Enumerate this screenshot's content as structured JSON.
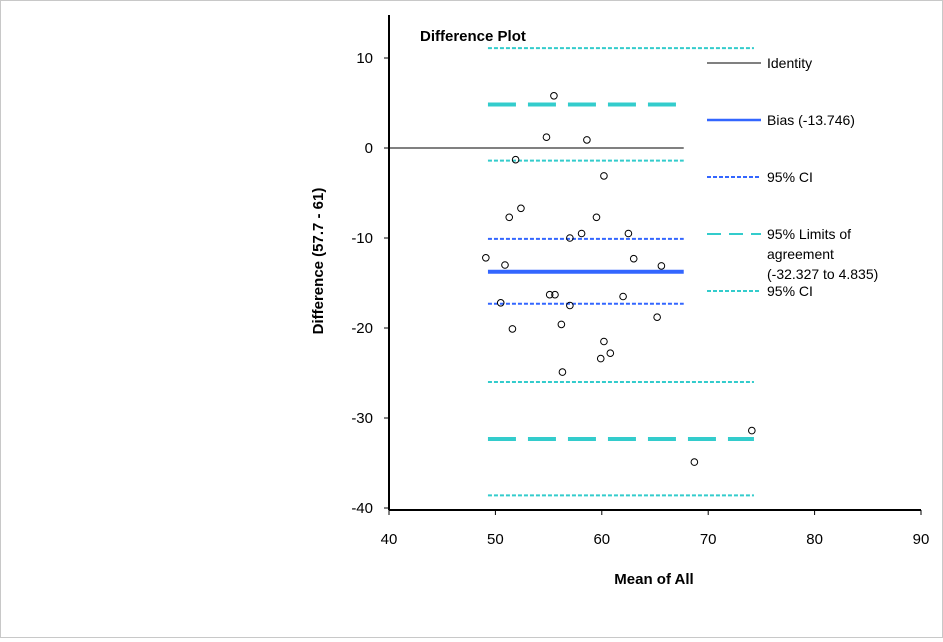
{
  "chart_data": {
    "type": "scatter",
    "title": "Difference Plot",
    "xlabel": "Mean of All",
    "ylabel": "Difference (57.7 - 61)",
    "xlim": [
      40,
      90
    ],
    "ylim": [
      -40,
      15
    ],
    "xticks": [
      40,
      50,
      60,
      70,
      80,
      90
    ],
    "yticks": [
      10,
      0,
      -10,
      -20,
      -30,
      -40
    ],
    "grid": false,
    "legend_position": "right",
    "points": [
      [
        55.5,
        5.8
      ],
      [
        54.8,
        1.2
      ],
      [
        58.6,
        0.9
      ],
      [
        51.9,
        -1.3
      ],
      [
        60.2,
        -3.1
      ],
      [
        52.4,
        -6.7
      ],
      [
        51.3,
        -7.7
      ],
      [
        59.5,
        -7.7
      ],
      [
        57.0,
        -10.0
      ],
      [
        58.1,
        -9.5
      ],
      [
        62.5,
        -9.5
      ],
      [
        49.1,
        -12.2
      ],
      [
        50.9,
        -13.0
      ],
      [
        63.0,
        -12.3
      ],
      [
        65.6,
        -13.1
      ],
      [
        50.5,
        -17.2
      ],
      [
        55.1,
        -16.3
      ],
      [
        55.6,
        -16.3
      ],
      [
        57.0,
        -17.5
      ],
      [
        62.0,
        -16.5
      ],
      [
        65.2,
        -18.8
      ],
      [
        51.6,
        -20.1
      ],
      [
        56.2,
        -19.6
      ],
      [
        60.2,
        -21.5
      ],
      [
        60.8,
        -22.8
      ],
      [
        59.9,
        -23.4
      ],
      [
        56.3,
        -24.9
      ],
      [
        74.1,
        -31.4
      ],
      [
        68.7,
        -34.9
      ]
    ],
    "lines": [
      {
        "name": "identity",
        "y": 0,
        "x": [
          40,
          67.7
        ],
        "color": "#808080",
        "style": "solid",
        "width": 2
      },
      {
        "name": "bias",
        "y": -13.746,
        "x": [
          49.3,
          67.7
        ],
        "color": "#3366ff",
        "style": "solid",
        "width": 4
      },
      {
        "name": "bias-ci-upper",
        "y": -10.1,
        "x": [
          49.3,
          67.7
        ],
        "color": "#3366ff",
        "style": "dotted",
        "width": 2
      },
      {
        "name": "bias-ci-lower",
        "y": -17.3,
        "x": [
          49.3,
          67.7
        ],
        "color": "#3366ff",
        "style": "dotted",
        "width": 2
      },
      {
        "name": "loa-upper",
        "y": 4.835,
        "x": [
          49.3,
          67.7
        ],
        "color": "#33cccc",
        "style": "dashed",
        "width": 4
      },
      {
        "name": "loa-lower",
        "y": -32.327,
        "x": [
          49.3,
          74.3
        ],
        "color": "#33cccc",
        "style": "dashed",
        "width": 4
      },
      {
        "name": "loa-upper-ci-high",
        "y": 11.1,
        "x": [
          49.3,
          74.3
        ],
        "color": "#33cccc",
        "style": "dotted",
        "width": 2
      },
      {
        "name": "loa-upper-ci-low",
        "y": -1.4,
        "x": [
          49.3,
          67.7
        ],
        "color": "#33cccc",
        "style": "dotted",
        "width": 2
      },
      {
        "name": "loa-lower-ci-high",
        "y": -26.0,
        "x": [
          49.3,
          74.3
        ],
        "color": "#33cccc",
        "style": "dotted",
        "width": 2
      },
      {
        "name": "loa-lower-ci-low",
        "y": -38.6,
        "x": [
          49.3,
          74.3
        ],
        "color": "#33cccc",
        "style": "dotted",
        "width": 2
      }
    ],
    "legend": [
      {
        "label": [
          "Identity"
        ],
        "color": "#808080",
        "style": "solid"
      },
      {
        "label": [
          "Bias (-13.746)"
        ],
        "color": "#3366ff",
        "style": "solid"
      },
      {
        "label": [
          "95% CI"
        ],
        "color": "#3366ff",
        "style": "dotted"
      },
      {
        "label": [
          "95% Limits of",
          "agreement",
          "(-32.327 to 4.835)"
        ],
        "color": "#33cccc",
        "style": "dashed"
      },
      {
        "label": [
          "95% CI"
        ],
        "color": "#33cccc",
        "style": "dotted"
      }
    ]
  }
}
